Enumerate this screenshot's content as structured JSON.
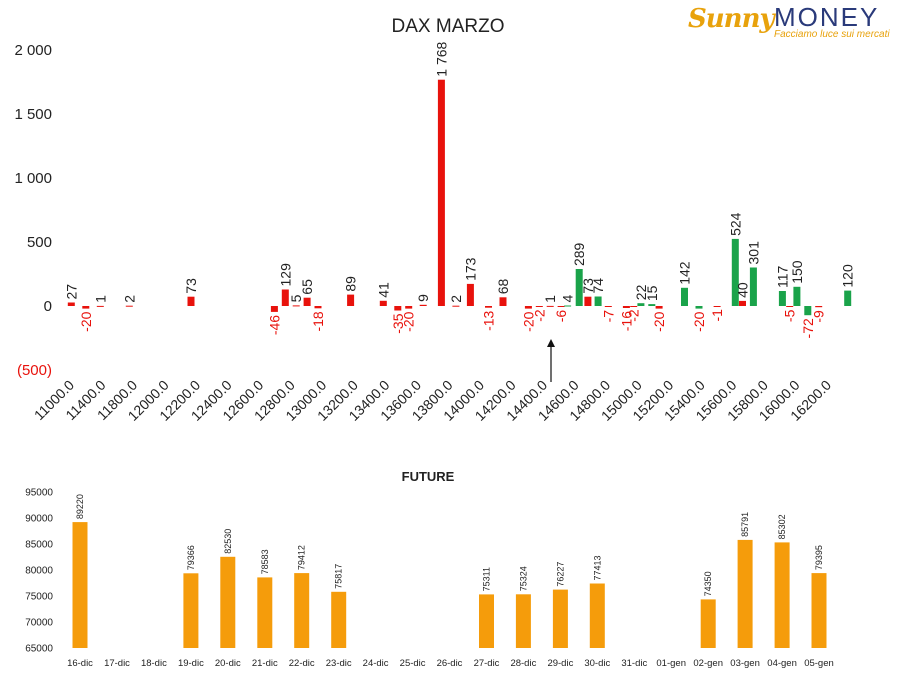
{
  "logo": {
    "brand_left": "Sunny",
    "brand_right": "MONEY",
    "tagline": "Facciamo luce sui mercati"
  },
  "colors": {
    "negative": "#e8120c",
    "positive": "#1aa34a",
    "future": "#f59c0b",
    "text": "#222222",
    "negative_label": "#e8120c"
  },
  "chart_data": [
    {
      "type": "bar",
      "title": "DAX MARZO",
      "ylim": [
        -500,
        2000
      ],
      "yticks": [
        {
          "value": 2000,
          "label": "2 000"
        },
        {
          "value": 1500,
          "label": "1 500"
        },
        {
          "value": 1000,
          "label": "1 000"
        },
        {
          "value": 500,
          "label": "500"
        },
        {
          "value": 0,
          "label": "0"
        },
        {
          "value": -500,
          "label": "(500)"
        }
      ],
      "xticks": [
        "11000.0",
        "11400.0",
        "11800.0",
        "12000.0",
        "12200.0",
        "12400.0",
        "12600.0",
        "12800.0",
        "13000.0",
        "13200.0",
        "13400.0",
        "13600.0",
        "13800.0",
        "14000.0",
        "14200.0",
        "14400.0",
        "14600.0",
        "14800.0",
        "15000.0",
        "15200.0",
        "15400.0",
        "15600.0",
        "15800.0",
        "16000.0",
        "16200.0"
      ],
      "x_range": [
        11000,
        16200
      ],
      "bars": [
        {
          "x": 11000,
          "value": 27,
          "label": "27",
          "color": "negative"
        },
        {
          "x": 11100,
          "value": -20,
          "label": "-20",
          "color": "negative"
        },
        {
          "x": 11200,
          "value": 1,
          "label": "1",
          "color": "negative"
        },
        {
          "x": 11400,
          "value": 2,
          "label": "2",
          "color": "negative"
        },
        {
          "x": 11825,
          "value": 73,
          "label": "73",
          "color": "negative"
        },
        {
          "x": 12400,
          "value": -46,
          "label": "-46",
          "color": "negative"
        },
        {
          "x": 12475,
          "value": 129,
          "label": "129",
          "color": "negative"
        },
        {
          "x": 12550,
          "value": 5,
          "label": "5",
          "color": "negative"
        },
        {
          "x": 12625,
          "value": 65,
          "label": "65",
          "color": "negative"
        },
        {
          "x": 12700,
          "value": -18,
          "label": "-18",
          "color": "negative"
        },
        {
          "x": 12925,
          "value": 89,
          "label": "89",
          "color": "negative"
        },
        {
          "x": 13150,
          "value": 41,
          "label": "41",
          "color": "negative"
        },
        {
          "x": 13250,
          "value": -35,
          "label": "-35",
          "color": "negative"
        },
        {
          "x": 13325,
          "value": -20,
          "label": "-20",
          "color": "negative"
        },
        {
          "x": 13425,
          "value": 9,
          "label": "9",
          "color": "negative"
        },
        {
          "x": 13550,
          "value": 1768,
          "label": "1 768",
          "color": "negative"
        },
        {
          "x": 13650,
          "value": 2,
          "label": "2",
          "color": "negative"
        },
        {
          "x": 13750,
          "value": 173,
          "label": "173",
          "color": "negative"
        },
        {
          "x": 13875,
          "value": -13,
          "label": "-13",
          "color": "negative"
        },
        {
          "x": 13975,
          "value": 68,
          "label": "68",
          "color": "negative"
        },
        {
          "x": 14150,
          "value": -20,
          "label": "-20",
          "color": "negative"
        },
        {
          "x": 14225,
          "value": -2,
          "label": "-2",
          "color": "negative"
        },
        {
          "x": 14300,
          "value": 1,
          "label": "1",
          "color": "negative"
        },
        {
          "x": 14375,
          "value": -6,
          "label": "-6",
          "color": "negative"
        },
        {
          "x": 14420,
          "value": 4,
          "label": "4",
          "color": "positive"
        },
        {
          "x": 14500,
          "value": 289,
          "label": "289",
          "color": "positive"
        },
        {
          "x": 14560,
          "value": 73,
          "label": "73",
          "color": "negative"
        },
        {
          "x": 14630,
          "value": 74,
          "label": "74",
          "color": "positive"
        },
        {
          "x": 14700,
          "value": -7,
          "label": "-7",
          "color": "negative"
        },
        {
          "x": 14825,
          "value": -16,
          "label": "-16",
          "color": "negative"
        },
        {
          "x": 14875,
          "value": -2,
          "label": "-2",
          "color": "negative"
        },
        {
          "x": 14925,
          "value": 22,
          "label": "22",
          "color": "positive"
        },
        {
          "x": 15000,
          "value": 15,
          "label": "15",
          "color": "positive"
        },
        {
          "x": 15050,
          "value": -20,
          "label": "-20",
          "color": "negative"
        },
        {
          "x": 15225,
          "value": 142,
          "label": "142",
          "color": "positive"
        },
        {
          "x": 15325,
          "value": -20,
          "label": "-20",
          "color": "positive"
        },
        {
          "x": 15450,
          "value": -1,
          "label": "-1",
          "color": "negative"
        },
        {
          "x": 15575,
          "value": 524,
          "label": "524",
          "color": "positive"
        },
        {
          "x": 15625,
          "value": 40,
          "label": "40",
          "color": "negative"
        },
        {
          "x": 15700,
          "value": 301,
          "label": "301",
          "color": "positive"
        },
        {
          "x": 15900,
          "value": 117,
          "label": "117",
          "color": "positive"
        },
        {
          "x": 15950,
          "value": -5,
          "label": "-5",
          "color": "negative"
        },
        {
          "x": 16000,
          "value": 150,
          "label": "150",
          "color": "positive"
        },
        {
          "x": 16075,
          "value": -72,
          "label": "-72",
          "color": "positive"
        },
        {
          "x": 16150,
          "value": -9,
          "label": "-9",
          "color": "negative"
        },
        {
          "x": 16350,
          "value": 120,
          "label": "120",
          "color": "positive"
        }
      ],
      "marker": {
        "type": "arrow",
        "x": 14400,
        "pointing": "up"
      }
    },
    {
      "type": "bar",
      "title": "FUTURE",
      "ylim": [
        65000,
        95000
      ],
      "yticks": [
        95000,
        90000,
        85000,
        80000,
        75000,
        70000,
        65000
      ],
      "categories": [
        "16-dic",
        "17-dic",
        "18-dic",
        "19-dic",
        "20-dic",
        "21-dic",
        "22-dic",
        "23-dic",
        "24-dic",
        "25-dic",
        "26-dic",
        "27-dic",
        "28-dic",
        "29-dic",
        "30-dic",
        "31-dic",
        "01-gen",
        "02-gen",
        "03-gen",
        "04-gen",
        "05-gen"
      ],
      "values": [
        89220,
        null,
        null,
        79366,
        82530,
        78583,
        79412,
        75817,
        null,
        null,
        null,
        75311,
        75324,
        76227,
        77413,
        null,
        null,
        74350,
        85791,
        85302,
        79395
      ],
      "color": "future"
    }
  ]
}
